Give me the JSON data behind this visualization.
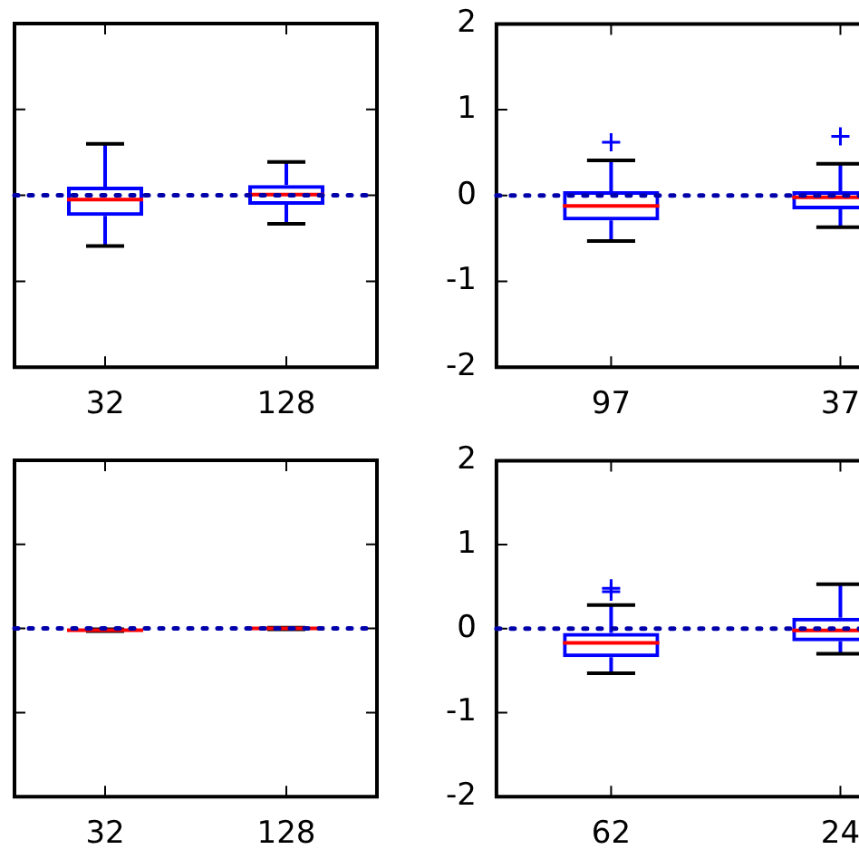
{
  "chart_data": [
    {
      "type": "box",
      "categories": [
        "32",
        "128"
      ],
      "ylim": [
        -2,
        2
      ],
      "yticks": [
        -2,
        -1,
        0,
        1,
        2
      ],
      "tick_labels": "x",
      "ref_lines": [
        {
          "axis": "y",
          "value": 0,
          "color": "#0000aa",
          "line_style": "dotted"
        }
      ],
      "series": [
        {
          "color": "#0000ff",
          "boxes": [
            {
              "low": -0.59,
              "q1": -0.24,
              "median": -0.05,
              "q3": 0.1,
              "high": 0.6
            },
            {
              "low": -0.33,
              "q1": -0.11,
              "median": 0.01,
              "q3": 0.12,
              "high": 0.39
            }
          ]
        }
      ]
    },
    {
      "type": "box",
      "categories": [
        "97",
        "37"
      ],
      "ylim": [
        -2,
        2
      ],
      "yticks": [
        -2,
        -1,
        0,
        1,
        2
      ],
      "ref_lines": [
        {
          "axis": "y",
          "value": 0,
          "color": "#0000aa",
          "line_style": "dotted"
        }
      ],
      "series": [
        {
          "color": "#0000ff",
          "boxes": [
            {
              "low": -0.53,
              "q1": -0.29,
              "median": -0.12,
              "q3": 0.05,
              "high": 0.41,
              "outliers": [
                0.62
              ]
            },
            {
              "low": -0.37,
              "q1": -0.16,
              "median": -0.02,
              "q3": 0.05,
              "high": 0.37,
              "outliers": [
                0.69
              ]
            }
          ]
        }
      ]
    },
    {
      "type": "box",
      "categories": [
        "32",
        "128"
      ],
      "ylim": [
        -2,
        2
      ],
      "yticks": [
        -2,
        -1,
        0,
        1,
        2
      ],
      "tick_labels": "x",
      "ref_lines": [
        {
          "axis": "y",
          "value": 0,
          "color": "#0000aa",
          "line_style": "dotted"
        }
      ],
      "series": [
        {
          "color": "#0000ff",
          "boxes": [
            {
              "low": -0.03,
              "q1": -0.03,
              "median": -0.02,
              "q3": -0.01,
              "high": -0.01
            },
            {
              "low": -0.01,
              "q1": -0.01,
              "median": 0,
              "q3": 0.01,
              "high": 0.01
            }
          ]
        }
      ]
    },
    {
      "type": "box",
      "categories": [
        "62",
        "24"
      ],
      "ylim": [
        -2,
        2
      ],
      "yticks": [
        -2,
        -1,
        0,
        1,
        2
      ],
      "ref_lines": [
        {
          "axis": "y",
          "value": 0,
          "color": "#0000aa",
          "line_style": "dotted"
        }
      ],
      "series": [
        {
          "color": "#0000ff",
          "boxes": [
            {
              "low": -0.53,
              "q1": -0.34,
              "median": -0.17,
              "q3": -0.05,
              "high": 0.28,
              "outliers": [
                0.48,
                0.44
              ]
            },
            {
              "low": -0.3,
              "q1": -0.15,
              "median": -0.02,
              "q3": 0.13,
              "high": 0.53
            }
          ]
        }
      ]
    }
  ]
}
